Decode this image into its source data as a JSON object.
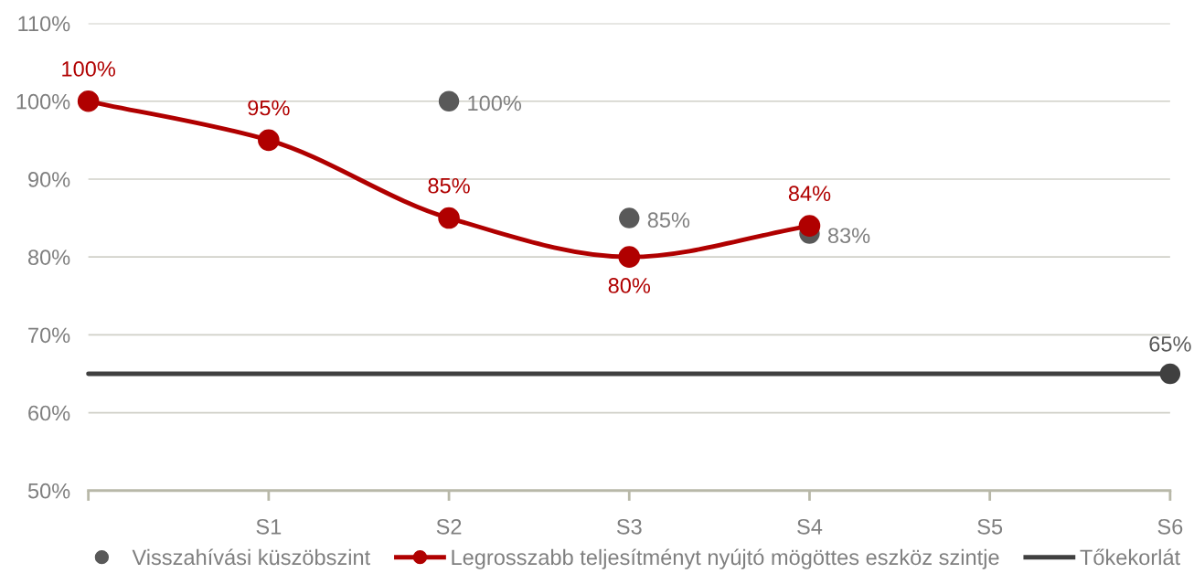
{
  "chart_data": {
    "type": "line",
    "categories": [
      null,
      "S1",
      "S2",
      "S3",
      "S4",
      "S5",
      "S6"
    ],
    "ylim": [
      50,
      110
    ],
    "yticks": [
      {
        "value": 50,
        "label": "50%"
      },
      {
        "value": 60,
        "label": "60%"
      },
      {
        "value": 70,
        "label": "70%"
      },
      {
        "value": 80,
        "label": "80%"
      },
      {
        "value": 90,
        "label": "90%"
      },
      {
        "value": 100,
        "label": "100%"
      },
      {
        "value": 110,
        "label": "110%"
      }
    ],
    "grid": "y",
    "legend": "bottom",
    "series": [
      {
        "name": "Visszahívási küszöbszint",
        "type": "scatter",
        "color": "#595959",
        "marker": "circle",
        "values": [
          null,
          null,
          100,
          85,
          83,
          null,
          null
        ],
        "value_labels": [
          null,
          null,
          "100%",
          "85%",
          "83%",
          null,
          null
        ]
      },
      {
        "name": "Legrosszabb teljesítményt nyújtó mögöttes eszköz szintje",
        "color": "#b00000",
        "marker": "circle",
        "values": [
          100,
          95,
          85,
          80,
          84,
          null,
          null
        ],
        "value_labels": [
          "100%",
          "95%",
          "85%",
          "80%",
          "84%",
          null,
          null
        ]
      },
      {
        "name": "Tőkekorlát",
        "color": "#404040",
        "marker": "none",
        "values": [
          65,
          65,
          65,
          65,
          65,
          65,
          65
        ]
      },
      {
        "type": "scatter",
        "color": "#404040",
        "marker": "circle",
        "values": [
          null,
          null,
          null,
          null,
          null,
          null,
          65
        ],
        "value_labels": [
          null,
          null,
          null,
          null,
          null,
          null,
          "65%"
        ]
      }
    ]
  }
}
